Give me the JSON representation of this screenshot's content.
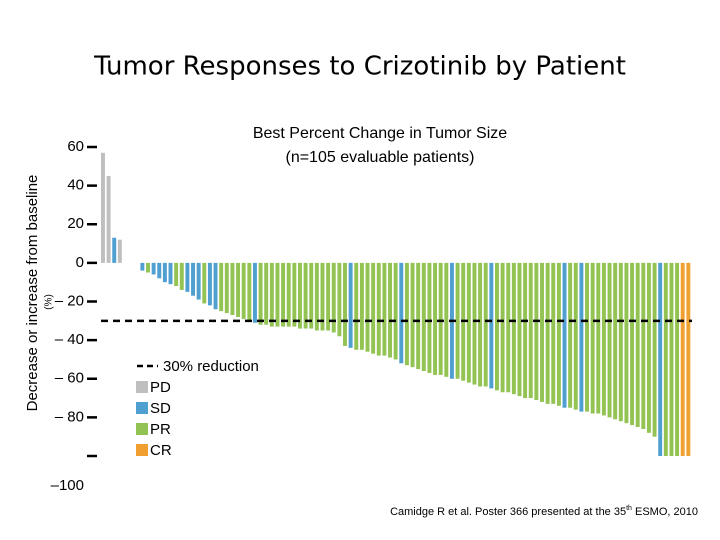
{
  "page_title": "Tumor Responses to Crizotinib by Patient",
  "chart_data": {
    "type": "waterfall",
    "title": "Best Percent Change in Tumor Size",
    "subtitle": "(n=105 evaluable patients)",
    "y_label": "Decrease or increase from baseline",
    "y_unit": "(%)",
    "ylim": [
      -100,
      60
    ],
    "yticks": [
      60,
      40,
      20,
      0,
      {
        "value": -20,
        "label": "– 20"
      },
      {
        "value": -40,
        "label": "– 40"
      },
      {
        "value": -60,
        "label": "– 60"
      },
      {
        "value": -80,
        "label": "– 80"
      },
      {
        "value": -100,
        "label": "–100"
      }
    ],
    "reference_line": {
      "value": -30,
      "label": "30% reduction"
    },
    "legend": [
      {
        "name": "PD",
        "color": "#bfbfbf"
      },
      {
        "name": "SD",
        "color": "#4f9fd0"
      },
      {
        "name": "PR",
        "color": "#92c353"
      },
      {
        "name": "CR",
        "color": "#f0a030"
      }
    ],
    "values": [
      57,
      45,
      13,
      12,
      0,
      0,
      0,
      -4,
      -5,
      -6,
      -8,
      -10,
      -11,
      -12,
      -14,
      -15,
      -17,
      -19,
      -21,
      -22,
      -24,
      -25,
      -26,
      -27,
      -28,
      -29,
      -30,
      -31,
      -32,
      -32,
      -33,
      -33,
      -33,
      -33,
      -33,
      -34,
      -34,
      -34,
      -35,
      -35,
      -35,
      -36,
      -38,
      -43,
      -44,
      -45,
      -45,
      -46,
      -47,
      -48,
      -48,
      -49,
      -50,
      -52,
      -53,
      -54,
      -55,
      -56,
      -57,
      -58,
      -58,
      -59,
      -60,
      -60,
      -61,
      -62,
      -63,
      -64,
      -64,
      -65,
      -66,
      -67,
      -67,
      -68,
      -69,
      -70,
      -70,
      -71,
      -72,
      -73,
      -73,
      -74,
      -75,
      -75,
      -76,
      -77,
      -77,
      -78,
      -78,
      -79,
      -80,
      -81,
      -82,
      -83,
      -84,
      -85,
      -86,
      -88,
      -90,
      -100,
      -100,
      -100,
      -100,
      -100,
      -100
    ],
    "status": [
      "PD",
      "PD",
      "SD",
      "PD",
      "PD",
      "PD",
      "PD",
      "SD",
      "PR",
      "SD",
      "SD",
      "SD",
      "SD",
      "PR",
      "PR",
      "SD",
      "SD",
      "SD",
      "PR",
      "SD",
      "SD",
      "PR",
      "PR",
      "PR",
      "PR",
      "PR",
      "PR",
      "SD",
      "PR",
      "PR",
      "PR",
      "PR",
      "PR",
      "PR",
      "PR",
      "PR",
      "PR",
      "PR",
      "PR",
      "PR",
      "PR",
      "PR",
      "PR",
      "PR",
      "SD",
      "PR",
      "PR",
      "PR",
      "PR",
      "PR",
      "PR",
      "PR",
      "PR",
      "SD",
      "PR",
      "PR",
      "PR",
      "PR",
      "PR",
      "PR",
      "PR",
      "PR",
      "SD",
      "PR",
      "PR",
      "PR",
      "PR",
      "PR",
      "PR",
      "SD",
      "PR",
      "PR",
      "PR",
      "PR",
      "PR",
      "PR",
      "PR",
      "PR",
      "PR",
      "PR",
      "PR",
      "PR",
      "SD",
      "PR",
      "PR",
      "SD",
      "PR",
      "PR",
      "PR",
      "PR",
      "PR",
      "PR",
      "PR",
      "PR",
      "PR",
      "PR",
      "PR",
      "PR",
      "PR",
      "SD",
      "PR",
      "PR",
      "PR",
      "CR",
      "CR"
    ],
    "source": [
      "Camidge R et al. Poster 366 presented at the 35",
      "th",
      " ESMO, 2010"
    ]
  }
}
